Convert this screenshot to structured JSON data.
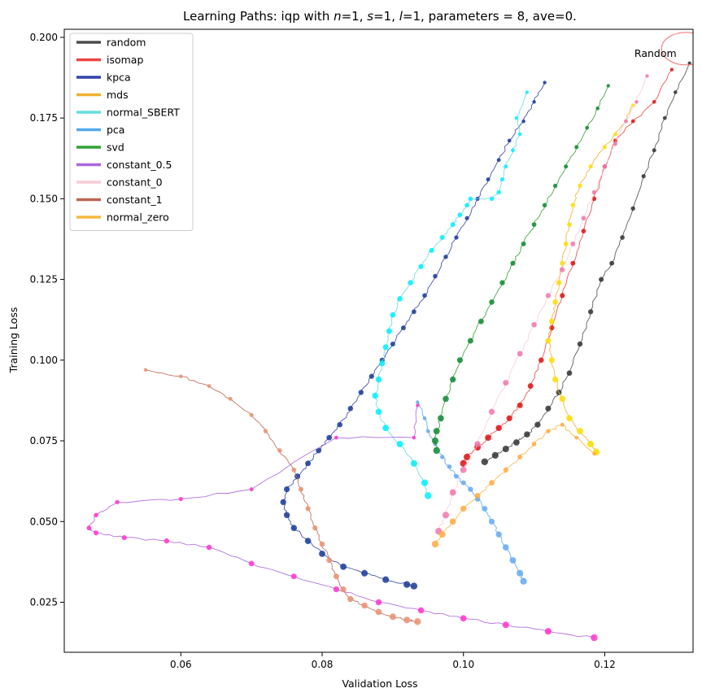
{
  "chart_data": {
    "type": "line",
    "title": "Learning Paths: iqp with n=1, s=1, l=1, parameters = 8, ave=0.",
    "title_parts": {
      "prefix": "Learning Paths: iqp with ",
      "n_var": "n",
      "n_eq": "=1, ",
      "s_var": "s",
      "s_eq": "=1, ",
      "l_var": "l",
      "l_eq": "=1, parameters = 8, ave=0."
    },
    "xlabel": "Validation Loss",
    "ylabel": "Training Loss",
    "xlim": [
      0.0435,
      0.1325
    ],
    "ylim": [
      0.0095,
      0.2025
    ],
    "xticks": [
      0.06,
      0.08,
      0.1,
      0.12
    ],
    "xtick_labels": [
      "0.06",
      "0.08",
      "0.10",
      "0.12"
    ],
    "yticks": [
      0.025,
      0.05,
      0.075,
      0.1,
      0.125,
      0.15,
      0.175,
      0.2
    ],
    "ytick_labels": [
      "0.025",
      "0.050",
      "0.075",
      "0.100",
      "0.125",
      "0.150",
      "0.175",
      "0.200"
    ],
    "grid": false,
    "legend_position": "top-left",
    "annotation": {
      "text": "Random",
      "x": 0.1242,
      "y": 0.195,
      "circle_center": [
        0.1315,
        0.1965
      ],
      "circle_color": "#f08080"
    },
    "series": [
      {
        "name": "random",
        "color": "#4d4d4d",
        "marker_color": "#333333",
        "x": [
          0.132,
          0.13,
          0.1285,
          0.127,
          0.1255,
          0.124,
          0.1225,
          0.121,
          0.1195,
          0.118,
          0.1165,
          0.115,
          0.1135,
          0.112,
          0.1105,
          0.109,
          0.1075,
          0.106,
          0.1045,
          0.103
        ],
        "y": [
          0.192,
          0.183,
          0.175,
          0.165,
          0.157,
          0.147,
          0.138,
          0.13,
          0.125,
          0.115,
          0.105,
          0.096,
          0.09,
          0.085,
          0.08,
          0.077,
          0.0745,
          0.0725,
          0.0705,
          0.0685
        ]
      },
      {
        "name": "isomap",
        "color": "#ee4444",
        "marker_color": "#dd1111",
        "x": [
          0.1295,
          0.127,
          0.124,
          0.1215,
          0.12,
          0.1185,
          0.117,
          0.1155,
          0.114,
          0.1125,
          0.111,
          0.1095,
          0.108,
          0.1065,
          0.105,
          0.1035,
          0.102,
          0.1005,
          0.1
        ],
        "y": [
          0.19,
          0.18,
          0.174,
          0.168,
          0.16,
          0.15,
          0.14,
          0.13,
          0.12,
          0.11,
          0.1,
          0.092,
          0.086,
          0.082,
          0.079,
          0.076,
          0.073,
          0.07,
          0.068
        ]
      },
      {
        "name": "kpca",
        "color": "#3344aa",
        "marker_color": "#1a3a99",
        "x": [
          0.1115,
          0.11,
          0.1085,
          0.1065,
          0.105,
          0.1035,
          0.102,
          0.1005,
          0.099,
          0.0975,
          0.096,
          0.0945,
          0.093,
          0.0915,
          0.09,
          0.0885,
          0.087,
          0.0855,
          0.084,
          0.0825,
          0.081,
          0.0795,
          0.078,
          0.0765,
          0.075,
          0.0745,
          0.075,
          0.076,
          0.078,
          0.08,
          0.083,
          0.086,
          0.089,
          0.092,
          0.093
        ],
        "y": [
          0.186,
          0.18,
          0.174,
          0.168,
          0.162,
          0.156,
          0.15,
          0.144,
          0.138,
          0.132,
          0.126,
          0.12,
          0.115,
          0.11,
          0.105,
          0.1,
          0.095,
          0.09,
          0.085,
          0.08,
          0.076,
          0.072,
          0.068,
          0.064,
          0.06,
          0.056,
          0.052,
          0.048,
          0.044,
          0.04,
          0.036,
          0.034,
          0.032,
          0.0305,
          0.03
        ]
      },
      {
        "name": "mds",
        "color": "#f0b030",
        "marker_color": "#ffdd00",
        "x": [
          0.124,
          0.123,
          0.1215,
          0.12,
          0.118,
          0.1165,
          0.1155,
          0.115,
          0.1145,
          0.114,
          0.1135,
          0.113,
          0.1125,
          0.112,
          0.1125,
          0.113,
          0.114,
          0.115,
          0.1165,
          0.118,
          0.1188
        ],
        "y": [
          0.179,
          0.174,
          0.17,
          0.166,
          0.16,
          0.154,
          0.148,
          0.142,
          0.136,
          0.13,
          0.124,
          0.118,
          0.112,
          0.106,
          0.1,
          0.094,
          0.088,
          0.082,
          0.078,
          0.074,
          0.0715
        ]
      },
      {
        "name": "normal_SBERT",
        "color": "#66dddd",
        "marker_color": "#00eeff",
        "x": [
          0.109,
          0.1075,
          0.108,
          0.107,
          0.106,
          0.1055,
          0.105,
          0.104,
          0.101,
          0.1005,
          0.0995,
          0.0985,
          0.097,
          0.0955,
          0.094,
          0.0925,
          0.091,
          0.09,
          0.0895,
          0.089,
          0.0885,
          0.088,
          0.0875,
          0.088,
          0.089,
          0.091,
          0.093,
          0.0945,
          0.095
        ],
        "y": [
          0.183,
          0.175,
          0.17,
          0.165,
          0.16,
          0.156,
          0.152,
          0.15,
          0.15,
          0.148,
          0.145,
          0.142,
          0.138,
          0.134,
          0.129,
          0.124,
          0.119,
          0.114,
          0.109,
          0.104,
          0.099,
          0.094,
          0.089,
          0.084,
          0.079,
          0.074,
          0.068,
          0.062,
          0.058
        ]
      },
      {
        "name": "pca",
        "color": "#55aaee",
        "marker_color": "#66aaee",
        "x": [
          0.0935,
          0.0945,
          0.095,
          0.096,
          0.097,
          0.098,
          0.099,
          0.1,
          0.101,
          0.102,
          0.103,
          0.104,
          0.105,
          0.106,
          0.107,
          0.108,
          0.1085
        ],
        "y": [
          0.087,
          0.082,
          0.078,
          0.074,
          0.07,
          0.067,
          0.064,
          0.062,
          0.06,
          0.057,
          0.054,
          0.05,
          0.046,
          0.042,
          0.038,
          0.034,
          0.0315
        ]
      },
      {
        "name": "svd",
        "color": "#33a033",
        "marker_color": "#118833",
        "x": [
          0.1205,
          0.119,
          0.1175,
          0.116,
          0.1145,
          0.113,
          0.1115,
          0.11,
          0.1085,
          0.107,
          0.1055,
          0.104,
          0.1025,
          0.101,
          0.0995,
          0.0985,
          0.0975,
          0.0968,
          0.0962,
          0.096,
          0.0962
        ],
        "y": [
          0.185,
          0.178,
          0.172,
          0.166,
          0.16,
          0.154,
          0.148,
          0.142,
          0.136,
          0.13,
          0.124,
          0.118,
          0.112,
          0.106,
          0.1,
          0.094,
          0.088,
          0.082,
          0.078,
          0.075,
          0.072
        ]
      },
      {
        "name": "constant_0.5",
        "color": "#aa66dd",
        "marker_color": "#ff33cc",
        "x": [
          0.0935,
          0.093,
          0.082,
          0.07,
          0.06,
          0.051,
          0.048,
          0.047,
          0.048,
          0.052,
          0.058,
          0.064,
          0.07,
          0.076,
          0.082,
          0.088,
          0.094,
          0.1,
          0.106,
          0.112,
          0.1185
        ],
        "y": [
          0.086,
          0.076,
          0.076,
          0.06,
          0.057,
          0.056,
          0.052,
          0.048,
          0.0465,
          0.045,
          0.044,
          0.042,
          0.037,
          0.033,
          0.029,
          0.025,
          0.0225,
          0.02,
          0.018,
          0.016,
          0.014
        ]
      },
      {
        "name": "constant_0",
        "color": "#f8ccd8",
        "marker_color": "#ee77aa",
        "x": [
          0.126,
          0.1245,
          0.123,
          0.1215,
          0.12,
          0.1185,
          0.117,
          0.1155,
          0.114,
          0.112,
          0.11,
          0.108,
          0.106,
          0.104,
          0.102,
          0.1,
          0.0985,
          0.0975,
          0.0965
        ],
        "y": [
          0.188,
          0.18,
          0.174,
          0.167,
          0.16,
          0.152,
          0.144,
          0.136,
          0.128,
          0.12,
          0.111,
          0.102,
          0.093,
          0.084,
          0.074,
          0.066,
          0.059,
          0.052,
          0.047
        ]
      },
      {
        "name": "constant_1",
        "color": "#bb6655",
        "marker_color": "#e89070",
        "x": [
          0.055,
          0.06,
          0.064,
          0.067,
          0.07,
          0.072,
          0.074,
          0.076,
          0.077,
          0.078,
          0.079,
          0.08,
          0.081,
          0.082,
          0.083,
          0.084,
          0.086,
          0.088,
          0.09,
          0.092,
          0.0935
        ],
        "y": [
          0.097,
          0.095,
          0.092,
          0.088,
          0.083,
          0.078,
          0.072,
          0.066,
          0.06,
          0.054,
          0.048,
          0.043,
          0.038,
          0.033,
          0.029,
          0.026,
          0.024,
          0.022,
          0.0205,
          0.0195,
          0.019
        ]
      },
      {
        "name": "normal_zero",
        "color": "#f5b840",
        "marker_color": "#ffaa44",
        "x": [
          0.1185,
          0.116,
          0.114,
          0.112,
          0.11,
          0.108,
          0.106,
          0.104,
          0.102,
          0.1,
          0.0985,
          0.097,
          0.096
        ],
        "y": [
          0.071,
          0.076,
          0.08,
          0.078,
          0.074,
          0.07,
          0.066,
          0.062,
          0.058,
          0.054,
          0.05,
          0.046,
          0.043
        ]
      }
    ]
  }
}
